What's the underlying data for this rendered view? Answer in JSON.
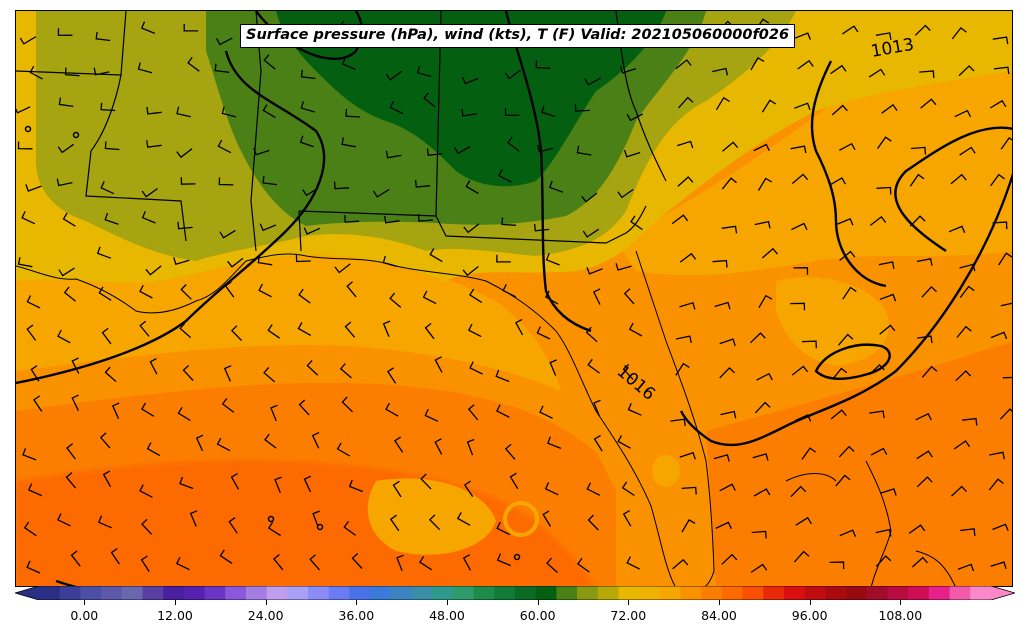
{
  "title": "Surface pressure (hPa), wind (kts), T (F) Valid: 202105060000f026",
  "isobar_labels": [
    "1013",
    "1016"
  ],
  "colorbar": {
    "min": -6,
    "max": 120,
    "step": 3,
    "tick_values": [
      "0.00",
      "12.00",
      "24.00",
      "36.00",
      "48.00",
      "60.00",
      "72.00",
      "84.00",
      "96.00",
      "108.00"
    ],
    "colors": [
      "#2a2f86",
      "#3b3f98",
      "#4d4fa6",
      "#5c5aa8",
      "#6b66b0",
      "#5a3fa2",
      "#4a1fa0",
      "#5620b0",
      "#6a34c4",
      "#8a58d8",
      "#a47ce2",
      "#bf9ef0",
      "#a9a0f5",
      "#8a8cf8",
      "#6a7cf2",
      "#4a72e8",
      "#3a7ad8",
      "#3c84c0",
      "#3a8ea8",
      "#2f9a8c",
      "#2f9a6a",
      "#1f8a4a",
      "#127a38",
      "#0b6a24",
      "#046010",
      "#4a8016",
      "#8a9a10",
      "#b8a808",
      "#e8b800",
      "#f0b200",
      "#f7a600",
      "#fa9200",
      "#fc7e00",
      "#fd6a00",
      "#f85000",
      "#e82a08",
      "#d81010",
      "#c00c10",
      "#a80a0e",
      "#980a10",
      "#a20c2a",
      "#b80c40",
      "#d00e58",
      "#e8208a",
      "#f45aaa",
      "#fb88c8"
    ]
  },
  "colors": {
    "land_north": "#046010",
    "land_mid": "#4a8016",
    "land_south": "#8a9a10",
    "coast_band": "#e8b800",
    "gulf": "#f7a600",
    "ocean": "#fa9200",
    "ocean_south": "#fc7e00"
  }
}
